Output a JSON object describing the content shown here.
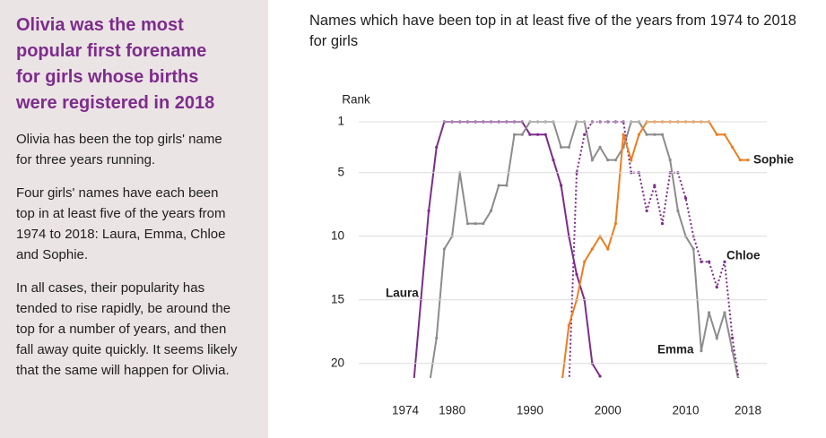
{
  "panel": {
    "heading": "Olivia was the most popular first forename for girls whose births were registered in 2018",
    "paragraphs": [
      "Olivia has been the top girls' name for three years running.",
      "Four girls' names have each been top in at least five of the years from 1974 to 2018: Laura, Emma, Chloe and Sophie.",
      "In all cases, their popularity has tended to rise rapidly, be around the top for a number of years, and then fall away quite quickly. It seems likely that the same will happen for Olivia."
    ]
  },
  "chart_data": {
    "type": "line",
    "title": "Names which have been top in at least five of the years from 1974 to 2018 for girls",
    "y_label": "Rank",
    "x": [
      1974,
      1975,
      1976,
      1977,
      1978,
      1979,
      1980,
      1981,
      1982,
      1983,
      1984,
      1985,
      1986,
      1987,
      1988,
      1989,
      1990,
      1991,
      1992,
      1993,
      1994,
      1995,
      1996,
      1997,
      1998,
      1999,
      2000,
      2001,
      2002,
      2003,
      2004,
      2005,
      2006,
      2007,
      2008,
      2009,
      2010,
      2011,
      2012,
      2013,
      2014,
      2015,
      2016,
      2017,
      2018
    ],
    "xlim": [
      1974,
      2018
    ],
    "xticks": [
      1974,
      1980,
      1990,
      2000,
      2010,
      2018
    ],
    "ylim": [
      21,
      1
    ],
    "yticks": [
      1,
      5,
      10,
      15,
      20
    ],
    "grid": true,
    "series": [
      {
        "name": "Laura",
        "color": "#7d2c8c",
        "style": "solid",
        "values": [
          null,
          22,
          15,
          8,
          3,
          1,
          1,
          1,
          1,
          1,
          1,
          1,
          1,
          1,
          1,
          1,
          2,
          2,
          2,
          4,
          6,
          10,
          13,
          15,
          20,
          21,
          null,
          null,
          null,
          null,
          null,
          null,
          null,
          null,
          null,
          null,
          null,
          null,
          null,
          null,
          null,
          null,
          null,
          null,
          null
        ]
      },
      {
        "name": "Emma",
        "color": "#8c8c8c",
        "style": "solid",
        "values": [
          null,
          null,
          null,
          22,
          18,
          11,
          10,
          5,
          9,
          9,
          9,
          8,
          6,
          6,
          2,
          2,
          1,
          1,
          1,
          1,
          3,
          3,
          1,
          1,
          4,
          3,
          4,
          4,
          3,
          1,
          1,
          2,
          2,
          2,
          4,
          8,
          10,
          11,
          19,
          16,
          18,
          16,
          19,
          22,
          null
        ]
      },
      {
        "name": "Chloe",
        "color": "#7d2c8c",
        "style": "dotted",
        "values": [
          null,
          null,
          null,
          null,
          null,
          null,
          null,
          null,
          null,
          null,
          null,
          null,
          null,
          null,
          null,
          null,
          null,
          null,
          null,
          null,
          null,
          22,
          5,
          2,
          1,
          1,
          1,
          1,
          1,
          5,
          5,
          8,
          6,
          9,
          5,
          5,
          7,
          10,
          12,
          12,
          14,
          12,
          18,
          22,
          null
        ]
      },
      {
        "name": "Sophie",
        "color": "#ed7d1f",
        "style": "solid",
        "values": [
          null,
          null,
          null,
          null,
          null,
          null,
          null,
          null,
          null,
          null,
          null,
          null,
          null,
          null,
          null,
          null,
          null,
          null,
          null,
          null,
          22,
          17,
          15,
          12,
          11,
          10,
          11,
          9,
          2,
          4,
          2,
          1,
          1,
          1,
          1,
          1,
          1,
          1,
          1,
          1,
          2,
          2,
          3,
          4,
          4
        ]
      }
    ]
  }
}
